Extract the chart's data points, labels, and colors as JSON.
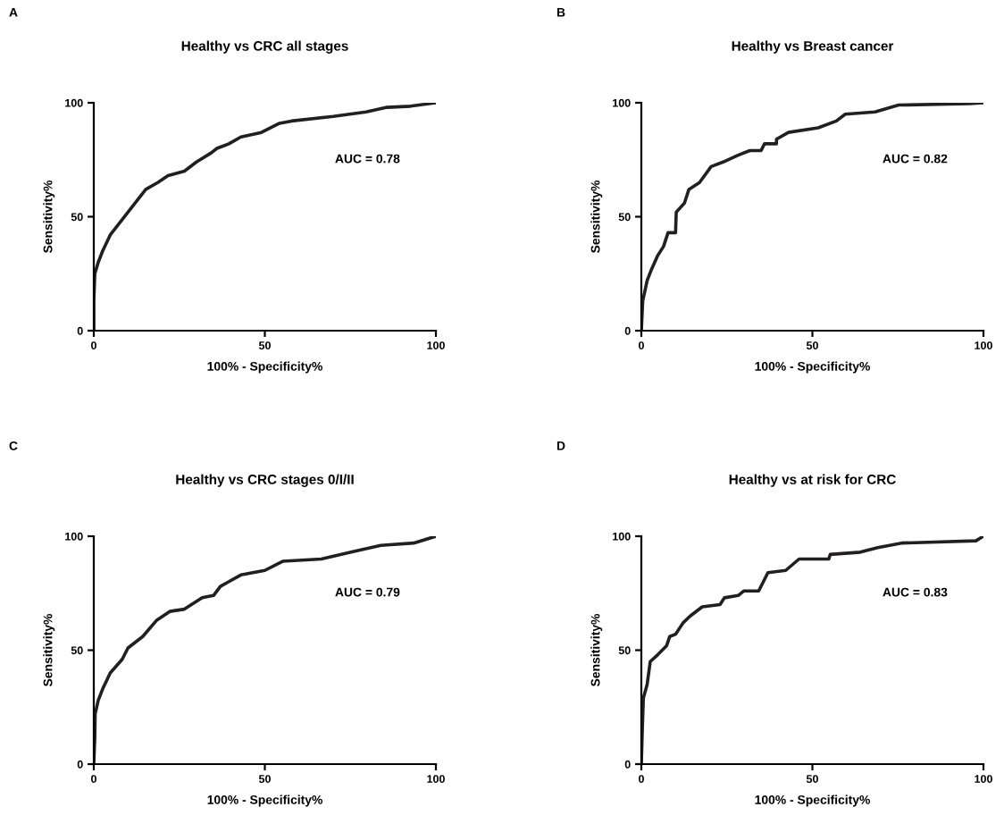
{
  "chart_data": [
    {
      "type": "line",
      "title": "Healthy vs CRC all stages",
      "xlabel": "100% - Specificity%",
      "ylabel": "Sensitivity%",
      "xlim": [
        0,
        100
      ],
      "ylim": [
        0,
        100
      ],
      "xticks": [
        0,
        50,
        100
      ],
      "yticks": [
        0,
        50,
        100
      ],
      "grid": false,
      "legend": false,
      "annotations": [
        "A",
        "AUC = 0.78"
      ],
      "series": [
        {
          "color": "#231f20",
          "x": [
            0,
            0,
            0.3,
            1.3,
            2.6,
            4.8,
            7.4,
            10,
            12.6,
            15.2,
            18.7,
            21.7,
            26.5,
            30,
            34.3,
            36,
            39.5,
            43,
            49,
            54.3,
            57.8,
            70,
            79.6,
            85.7,
            92.6,
            100
          ],
          "values": [
            0,
            13,
            25,
            30,
            35,
            42,
            47,
            52,
            57,
            62,
            65,
            68,
            70,
            74,
            78,
            80,
            82,
            85,
            87,
            91,
            92,
            94,
            96,
            98,
            98.5,
            100
          ]
        }
      ]
    },
    {
      "type": "line",
      "title": "Healthy vs Breast cancer",
      "xlabel": "100% - Specificity%",
      "ylabel": "Sensitivity%",
      "xlim": [
        0,
        100
      ],
      "ylim": [
        0,
        100
      ],
      "xticks": [
        0,
        50,
        100
      ],
      "yticks": [
        0,
        50,
        100
      ],
      "grid": false,
      "legend": false,
      "annotations": [
        "B",
        "AUC = 0.82"
      ],
      "series": [
        {
          "color": "#231f20",
          "x": [
            0,
            0.4,
            1.7,
            3,
            4.8,
            6.5,
            7.8,
            10,
            10.2,
            12.6,
            13.9,
            17,
            20.4,
            23.9,
            28.3,
            31.7,
            35,
            36,
            39.5,
            39.5,
            43,
            51.7,
            57,
            59.6,
            68.3,
            75.2,
            96,
            100
          ],
          "values": [
            0,
            13,
            22,
            27,
            33,
            37,
            43,
            43,
            52,
            56,
            62,
            65,
            72,
            74,
            77,
            79,
            79,
            82,
            82,
            84,
            87,
            89,
            92,
            95,
            96,
            99,
            99.6,
            100
          ]
        }
      ]
    },
    {
      "type": "line",
      "title": "Healthy vs CRC stages 0/I/II",
      "xlabel": "100% - Specificity%",
      "ylabel": "Sensitivity%",
      "xlim": [
        0,
        100
      ],
      "ylim": [
        0,
        100
      ],
      "xticks": [
        0,
        50,
        100
      ],
      "yticks": [
        0,
        50,
        100
      ],
      "grid": false,
      "legend": false,
      "annotations": [
        "C",
        "AUC = 0.79"
      ],
      "series": [
        {
          "color": "#231f20",
          "x": [
            0,
            0.3,
            0.4,
            1.3,
            2.6,
            4.8,
            8.3,
            10,
            14.3,
            18.3,
            22.2,
            26.5,
            31.7,
            35,
            37,
            43,
            50,
            55.2,
            66.5,
            75.2,
            83.9,
            93.5,
            100
          ],
          "values": [
            0,
            12,
            22,
            28,
            33,
            40,
            46,
            51,
            56,
            63,
            67,
            68,
            73,
            74,
            78,
            83,
            85,
            89,
            90,
            93,
            96,
            97,
            100
          ]
        }
      ]
    },
    {
      "type": "line",
      "title": "Healthy vs at risk for CRC",
      "xlabel": "100% - Specificity%",
      "ylabel": "Sensitivity%",
      "xlim": [
        0,
        100
      ],
      "ylim": [
        0,
        100
      ],
      "xticks": [
        0,
        50,
        100
      ],
      "yticks": [
        0,
        50,
        100
      ],
      "grid": false,
      "legend": false,
      "annotations": [
        "D",
        "AUC = 0.83"
      ],
      "series": [
        {
          "color": "#231f20",
          "x": [
            0,
            0.3,
            0.6,
            1.7,
            2.6,
            4.8,
            7.4,
            8.3,
            10,
            12.2,
            14.3,
            17.8,
            23,
            24.3,
            28.3,
            30,
            34.3,
            37,
            42.2,
            46.1,
            54.8,
            55.2,
            64,
            69.1,
            76,
            97.8,
            100
          ],
          "values": [
            0,
            16,
            29,
            35,
            45,
            48,
            52,
            56,
            57,
            62,
            65,
            69,
            70,
            73,
            74,
            76,
            76,
            84,
            85,
            90,
            90,
            92,
            93,
            95,
            97,
            98,
            100
          ]
        }
      ]
    }
  ]
}
